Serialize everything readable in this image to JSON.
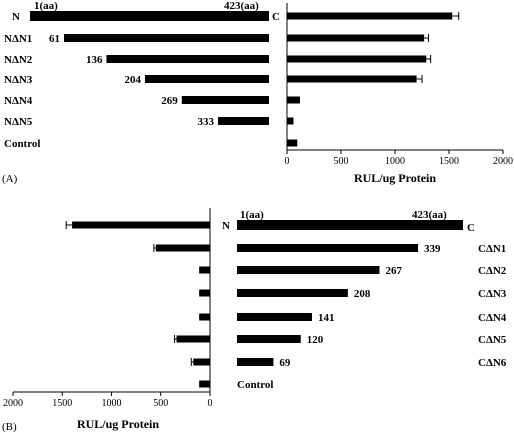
{
  "figure": {
    "panel_a_label": "(A)",
    "panel_b_label": "(B)"
  },
  "chart_data": [
    {
      "type": "bar",
      "panel": "A",
      "orientation": "horizontal",
      "protein_scale_aa": [
        1,
        423
      ],
      "full_length": {
        "start_label": "1(aa)",
        "end_label": "423(aa)",
        "n_label": "N",
        "c_label": "C"
      },
      "constructs": [
        {
          "name": "",
          "start": 1,
          "end": 423,
          "number_label": ""
        },
        {
          "name": "NΔN1",
          "start": 61,
          "end": 423,
          "number_label": "61"
        },
        {
          "name": "NΔN2",
          "start": 136,
          "end": 423,
          "number_label": "136"
        },
        {
          "name": "NΔN3",
          "start": 204,
          "end": 423,
          "number_label": "204"
        },
        {
          "name": "NΔN4",
          "start": 269,
          "end": 423,
          "number_label": "269"
        },
        {
          "name": "NΔN5",
          "start": 333,
          "end": 423,
          "number_label": "333"
        },
        {
          "name": "Control",
          "start": null,
          "end": null,
          "number_label": ""
        }
      ],
      "values": [
        1530,
        1270,
        1290,
        1200,
        120,
        60,
        95
      ],
      "errors": [
        60,
        40,
        40,
        50,
        0,
        0,
        0
      ],
      "xlabel": "RUL/ug Protein",
      "xlim": [
        0,
        2000
      ],
      "xticks": [
        0,
        500,
        1000,
        1500,
        2000
      ]
    },
    {
      "type": "bar",
      "panel": "B",
      "orientation": "horizontal",
      "x_reversed": true,
      "protein_scale_aa": [
        1,
        423
      ],
      "full_length": {
        "start_label": "1(aa)",
        "end_label": "423(aa)",
        "n_label": "N",
        "c_label": "C"
      },
      "constructs": [
        {
          "name": "",
          "start": 1,
          "end": 423,
          "number_label": ""
        },
        {
          "name": "CΔN1",
          "start": 1,
          "end": 339,
          "number_label": "339"
        },
        {
          "name": "CΔN2",
          "start": 1,
          "end": 267,
          "number_label": "267"
        },
        {
          "name": "CΔN3",
          "start": 1,
          "end": 208,
          "number_label": "208"
        },
        {
          "name": "CΔN4",
          "start": 1,
          "end": 141,
          "number_label": "141"
        },
        {
          "name": "CΔN5",
          "start": 1,
          "end": 120,
          "number_label": "120"
        },
        {
          "name": "CΔN6",
          "start": 1,
          "end": 69,
          "number_label": "69"
        },
        {
          "name": "Control",
          "start": null,
          "end": null,
          "number_label": ""
        }
      ],
      "values": [
        1400,
        550,
        110,
        110,
        110,
        340,
        170,
        110
      ],
      "errors": [
        60,
        20,
        0,
        0,
        0,
        20,
        20,
        0
      ],
      "xlabel": "RUL/ug Protein",
      "xlim": [
        2000,
        0
      ],
      "xticks": [
        2000,
        1500,
        1000,
        500,
        0
      ]
    }
  ]
}
